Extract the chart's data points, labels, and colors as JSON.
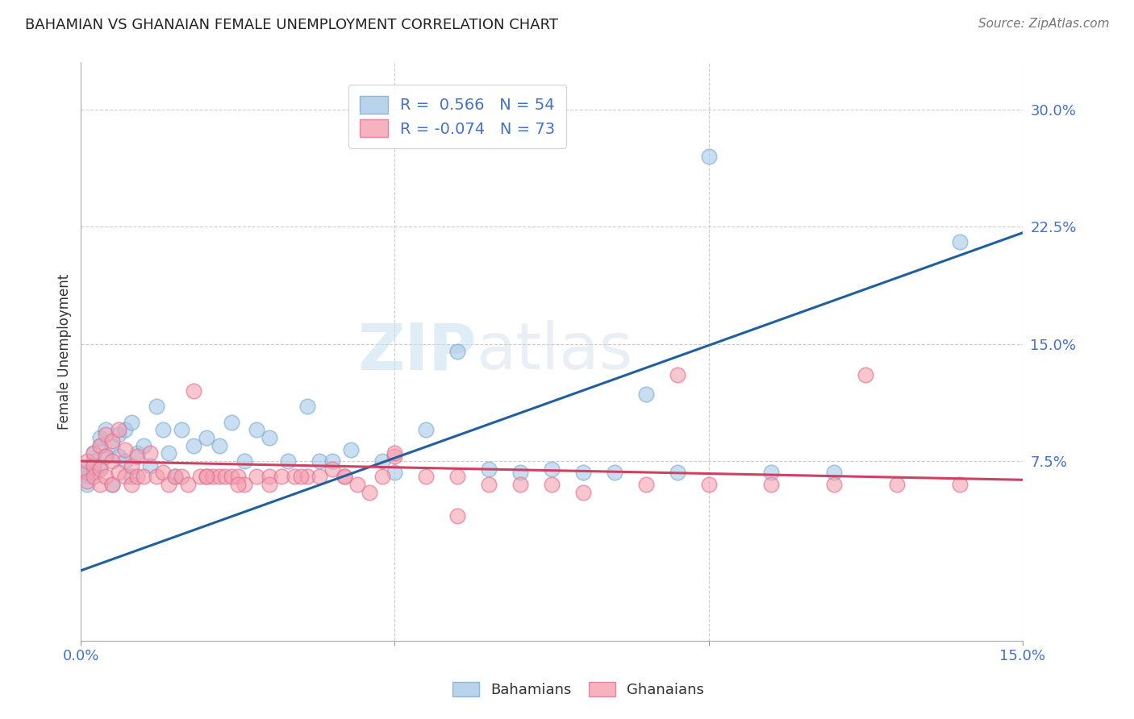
{
  "title": "BAHAMIAN VS GHANAIAN FEMALE UNEMPLOYMENT CORRELATION CHART",
  "source": "Source: ZipAtlas.com",
  "ylabel": "Female Unemployment",
  "xlim": [
    0.0,
    0.15
  ],
  "ylim": [
    -0.04,
    0.33
  ],
  "xticks": [
    0.0,
    0.05,
    0.1,
    0.15
  ],
  "xticklabels": [
    "0.0%",
    "",
    "",
    "15.0%"
  ],
  "yticks_right": [
    0.075,
    0.15,
    0.225,
    0.3
  ],
  "yticklabels_right": [
    "7.5%",
    "15.0%",
    "22.5%",
    "30.0%"
  ],
  "grid_color": "#cccccc",
  "background_color": "#ffffff",
  "blue_color": "#a8c8e8",
  "pink_color": "#f4a0b0",
  "blue_edge_color": "#7aaad0",
  "pink_edge_color": "#e07090",
  "blue_line_color": "#2060a0",
  "pink_line_color": "#d04060",
  "r_blue": 0.566,
  "n_blue": 54,
  "r_pink": -0.074,
  "n_pink": 73,
  "watermark_zip": "ZIP",
  "watermark_atlas": "atlas",
  "legend_label_blue": "Bahamians",
  "legend_label_pink": "Ghanaians",
  "blue_line_x0": 0.0,
  "blue_line_y0": 0.005,
  "blue_line_x1": 0.15,
  "blue_line_y1": 0.221,
  "pink_line_x0": 0.0,
  "pink_line_y0": 0.075,
  "pink_line_x1": 0.15,
  "pink_line_y1": 0.063,
  "bahamians_x": [
    0.001,
    0.001,
    0.001,
    0.002,
    0.002,
    0.002,
    0.003,
    0.003,
    0.003,
    0.004,
    0.004,
    0.005,
    0.005,
    0.006,
    0.006,
    0.007,
    0.007,
    0.008,
    0.008,
    0.009,
    0.01,
    0.011,
    0.012,
    0.013,
    0.014,
    0.015,
    0.016,
    0.018,
    0.02,
    0.022,
    0.024,
    0.026,
    0.028,
    0.03,
    0.033,
    0.036,
    0.038,
    0.04,
    0.043,
    0.048,
    0.05,
    0.055,
    0.06,
    0.065,
    0.07,
    0.075,
    0.08,
    0.085,
    0.09,
    0.095,
    0.1,
    0.11,
    0.12,
    0.14
  ],
  "bahamians_y": [
    0.065,
    0.07,
    0.06,
    0.068,
    0.075,
    0.08,
    0.085,
    0.072,
    0.09,
    0.078,
    0.095,
    0.06,
    0.085,
    0.092,
    0.078,
    0.075,
    0.095,
    0.065,
    0.1,
    0.08,
    0.085,
    0.072,
    0.11,
    0.095,
    0.08,
    0.065,
    0.095,
    0.085,
    0.09,
    0.085,
    0.1,
    0.075,
    0.095,
    0.09,
    0.075,
    0.11,
    0.075,
    0.075,
    0.082,
    0.075,
    0.068,
    0.095,
    0.145,
    0.07,
    0.068,
    0.07,
    0.068,
    0.068,
    0.118,
    0.068,
    0.27,
    0.068,
    0.068,
    0.215
  ],
  "ghanaians_x": [
    0.001,
    0.001,
    0.001,
    0.002,
    0.002,
    0.002,
    0.003,
    0.003,
    0.003,
    0.004,
    0.004,
    0.004,
    0.005,
    0.005,
    0.005,
    0.006,
    0.006,
    0.007,
    0.007,
    0.008,
    0.008,
    0.009,
    0.009,
    0.01,
    0.011,
    0.012,
    0.013,
    0.014,
    0.015,
    0.016,
    0.017,
    0.018,
    0.019,
    0.02,
    0.021,
    0.022,
    0.023,
    0.024,
    0.025,
    0.026,
    0.028,
    0.03,
    0.032,
    0.034,
    0.036,
    0.038,
    0.04,
    0.042,
    0.044,
    0.046,
    0.048,
    0.05,
    0.055,
    0.06,
    0.065,
    0.07,
    0.075,
    0.08,
    0.09,
    0.1,
    0.11,
    0.12,
    0.13,
    0.14,
    0.05,
    0.035,
    0.025,
    0.042,
    0.03,
    0.02,
    0.06,
    0.095,
    0.125
  ],
  "ghanaians_y": [
    0.068,
    0.075,
    0.062,
    0.072,
    0.08,
    0.065,
    0.06,
    0.085,
    0.07,
    0.065,
    0.078,
    0.092,
    0.075,
    0.06,
    0.088,
    0.095,
    0.068,
    0.065,
    0.082,
    0.06,
    0.072,
    0.065,
    0.078,
    0.065,
    0.08,
    0.065,
    0.068,
    0.06,
    0.065,
    0.065,
    0.06,
    0.12,
    0.065,
    0.065,
    0.065,
    0.065,
    0.065,
    0.065,
    0.065,
    0.06,
    0.065,
    0.065,
    0.065,
    0.065,
    0.065,
    0.065,
    0.07,
    0.065,
    0.06,
    0.055,
    0.065,
    0.078,
    0.065,
    0.065,
    0.06,
    0.06,
    0.06,
    0.055,
    0.06,
    0.06,
    0.06,
    0.06,
    0.06,
    0.06,
    0.08,
    0.065,
    0.06,
    0.065,
    0.06,
    0.065,
    0.04,
    0.13,
    0.13
  ],
  "title_fontsize": 13,
  "source_fontsize": 11,
  "tick_fontsize": 13,
  "ylabel_fontsize": 12
}
